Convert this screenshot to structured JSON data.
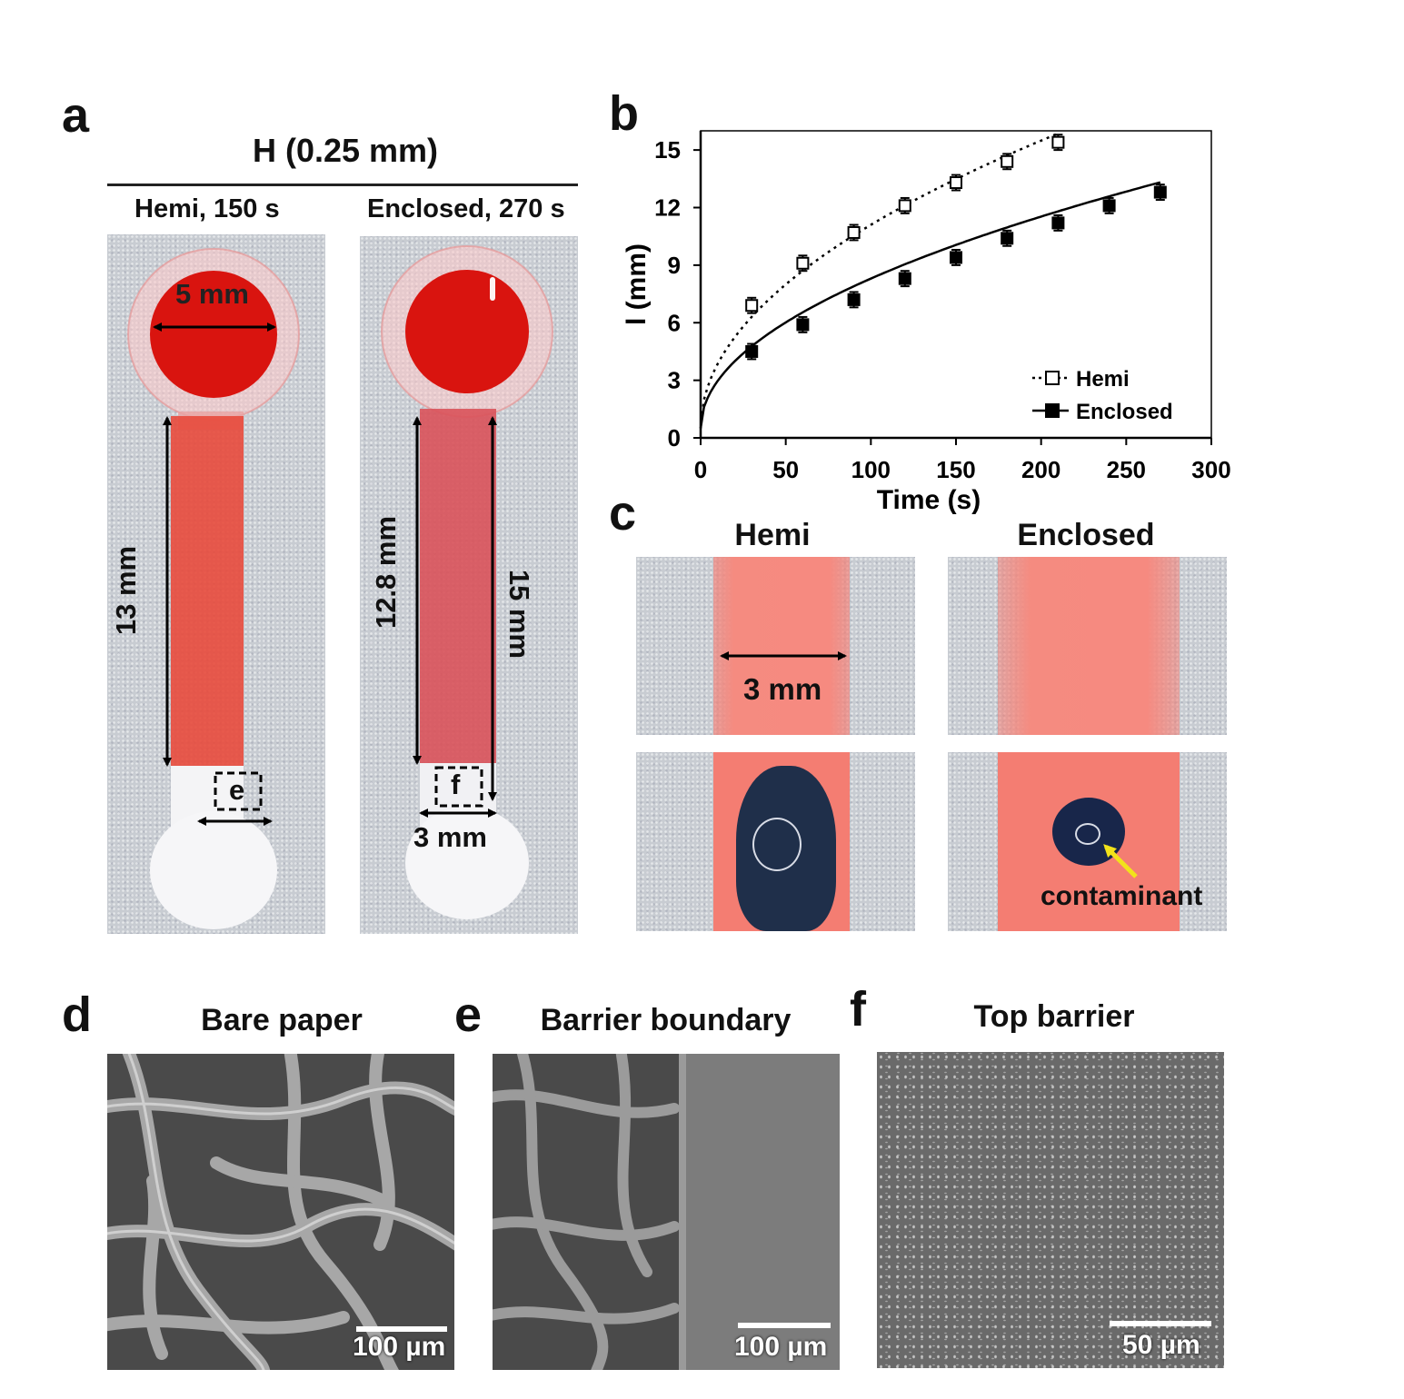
{
  "panels": {
    "a": {
      "letter": "a",
      "header": "H (0.25 mm)",
      "left_title": "Hemi, 150 s",
      "right_title": "Enclosed, 270 s",
      "dim_5mm": "5 mm",
      "dim_13mm": "13 mm",
      "dim_12_8mm": "12.8 mm",
      "dim_15mm": "15 mm",
      "dim_3mm": "3 mm",
      "box_e": "e",
      "box_f": "f"
    },
    "b": {
      "letter": "b"
    },
    "c": {
      "letter": "c",
      "hemi_title": "Hemi",
      "enclosed_title": "Enclosed",
      "width_label": "3 mm",
      "contaminant_label": "contaminant"
    },
    "d": {
      "letter": "d",
      "title": "Bare paper",
      "scale": "100 µm"
    },
    "e": {
      "letter": "e",
      "title": "Barrier boundary",
      "scale": "100 µm"
    },
    "f": {
      "letter": "f",
      "title": "Top barrier",
      "scale": "50 µm"
    }
  },
  "chart_data": {
    "type": "scatter",
    "xlabel": "Time (s)",
    "ylabel": "l (mm)",
    "xlim": [
      0,
      300
    ],
    "ylim": [
      0,
      16
    ],
    "x_ticks": [
      0,
      50,
      100,
      150,
      200,
      250,
      300
    ],
    "y_ticks": [
      0,
      3,
      6,
      9,
      12,
      15
    ],
    "legend_position": "bottom-right",
    "grid": false,
    "series": [
      {
        "name": "Hemi",
        "marker": "open-square",
        "line": "dotted",
        "x": [
          30,
          60,
          90,
          120,
          150,
          180,
          210
        ],
        "y": [
          6.9,
          9.1,
          10.7,
          12.1,
          13.3,
          14.4,
          15.4
        ],
        "fit_coefficient": 1.06,
        "color": "#000000"
      },
      {
        "name": "Enclosed",
        "marker": "filled-square",
        "line": "solid",
        "x": [
          30,
          60,
          90,
          120,
          150,
          180,
          210,
          240,
          270
        ],
        "y": [
          4.5,
          5.9,
          7.2,
          8.3,
          9.4,
          10.4,
          11.2,
          12.1,
          12.8
        ],
        "fit_coefficient": 0.78,
        "color": "#000000"
      }
    ]
  }
}
